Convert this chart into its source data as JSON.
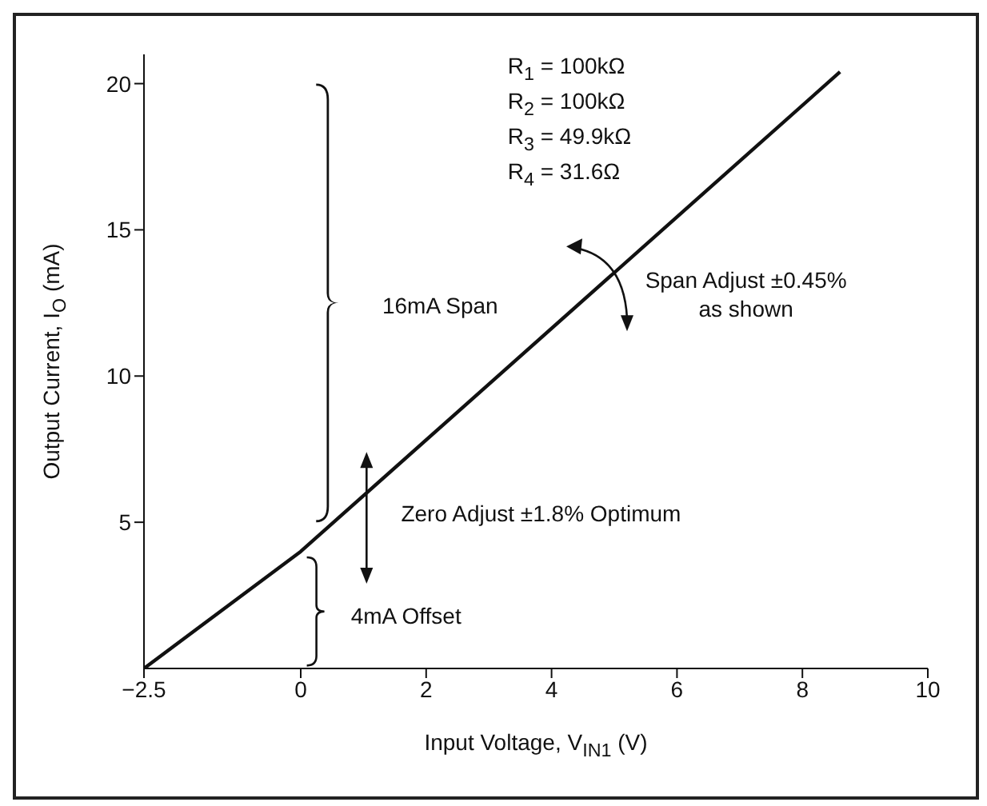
{
  "chart_data": {
    "type": "line",
    "xlabel": "Input Voltage, V$_{IN1}$ (V)",
    "ylabel": "Output Current, I$_{O}$ (mA)",
    "x": [
      -2.5,
      0,
      8.6
    ],
    "values": [
      0,
      4,
      20.4
    ],
    "color": "#111111",
    "marker": "none",
    "line_style": "solid",
    "grid": false,
    "legend": false,
    "xlim": [
      -2.5,
      10
    ],
    "xticks": [
      -2.5,
      0,
      2,
      4,
      6,
      8,
      10
    ],
    "ylim": [
      0,
      21
    ],
    "yticks": [
      5,
      10,
      15,
      20
    ],
    "annotations": [
      "R$_{1}$ = 100kΩ",
      "R$_{2}$ = 100kΩ",
      "R$_{3}$ = 49.9kΩ",
      "R$_{4}$ = 31.6Ω",
      "16mA Span",
      "Span Adjust ±0.45%\nas shown",
      "Zero Adjust ±1.8% Optimum",
      "4mA Offset"
    ]
  }
}
